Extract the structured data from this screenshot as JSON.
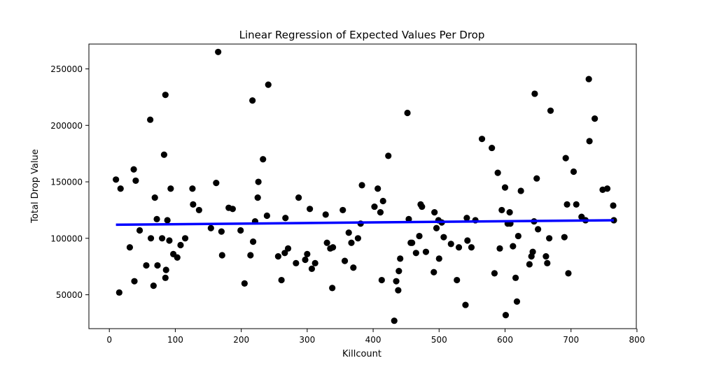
{
  "chart_data": {
    "type": "scatter",
    "title": "Linear Regression of Expected Values Per Drop",
    "xlabel": "Killcount",
    "ylabel": "Total Drop Value",
    "xlim": [
      -31,
      799
    ],
    "ylim": [
      20000,
      272000
    ],
    "xticks": [
      0,
      100,
      200,
      300,
      400,
      500,
      600,
      700,
      800
    ],
    "yticks": [
      50000,
      100000,
      150000,
      200000,
      250000
    ],
    "xtick_labels": [
      "0",
      "100",
      "200",
      "300",
      "400",
      "500",
      "600",
      "700",
      "800"
    ],
    "ytick_labels": [
      "50000",
      "100000",
      "150000",
      "200000",
      "250000"
    ],
    "grid": false,
    "point_color": "#000000",
    "line_color": "#0000ff",
    "regression": {
      "x": [
        10,
        765
      ],
      "y": [
        112000,
        116000
      ]
    },
    "points": [
      [
        10,
        152000
      ],
      [
        15,
        52000
      ],
      [
        17,
        144000
      ],
      [
        31,
        92000
      ],
      [
        37,
        161000
      ],
      [
        38,
        62000
      ],
      [
        40,
        151000
      ],
      [
        46,
        107000
      ],
      [
        56,
        76000
      ],
      [
        62,
        205000
      ],
      [
        63,
        100000
      ],
      [
        67,
        58000
      ],
      [
        69,
        136000
      ],
      [
        72,
        117000
      ],
      [
        73,
        76000
      ],
      [
        80,
        100000
      ],
      [
        83,
        174000
      ],
      [
        85,
        65000
      ],
      [
        85,
        227000
      ],
      [
        86,
        72000
      ],
      [
        88,
        116000
      ],
      [
        91,
        98000
      ],
      [
        93,
        144000
      ],
      [
        97,
        86000
      ],
      [
        103,
        83000
      ],
      [
        108,
        94000
      ],
      [
        115,
        100000
      ],
      [
        126,
        144000
      ],
      [
        127,
        130000
      ],
      [
        136,
        125000
      ],
      [
        154,
        109000
      ],
      [
        162,
        149000
      ],
      [
        165,
        265000
      ],
      [
        170,
        106000
      ],
      [
        171,
        85000
      ],
      [
        181,
        127000
      ],
      [
        187,
        126000
      ],
      [
        199,
        107000
      ],
      [
        205,
        60000
      ],
      [
        214,
        85000
      ],
      [
        217,
        222000
      ],
      [
        218,
        97000
      ],
      [
        221,
        115000
      ],
      [
        225,
        136000
      ],
      [
        226,
        150000
      ],
      [
        233,
        170000
      ],
      [
        239,
        120000
      ],
      [
        241,
        236000
      ],
      [
        256,
        84000
      ],
      [
        261,
        63000
      ],
      [
        266,
        87000
      ],
      [
        267,
        118000
      ],
      [
        271,
        91000
      ],
      [
        283,
        78000
      ],
      [
        287,
        136000
      ],
      [
        297,
        81000
      ],
      [
        300,
        86000
      ],
      [
        304,
        126000
      ],
      [
        307,
        73000
      ],
      [
        312,
        78000
      ],
      [
        328,
        121000
      ],
      [
        330,
        96000
      ],
      [
        335,
        91000
      ],
      [
        338,
        56000
      ],
      [
        339,
        92000
      ],
      [
        354,
        125000
      ],
      [
        357,
        80000
      ],
      [
        363,
        105000
      ],
      [
        367,
        96000
      ],
      [
        370,
        74000
      ],
      [
        377,
        100000
      ],
      [
        381,
        113000
      ],
      [
        383,
        147000
      ],
      [
        402,
        128000
      ],
      [
        407,
        144000
      ],
      [
        411,
        123000
      ],
      [
        413,
        63000
      ],
      [
        415,
        133000
      ],
      [
        423,
        173000
      ],
      [
        432,
        27000
      ],
      [
        435,
        62000
      ],
      [
        438,
        54000
      ],
      [
        439,
        71000
      ],
      [
        441,
        82000
      ],
      [
        452,
        211000
      ],
      [
        454,
        117000
      ],
      [
        457,
        96000
      ],
      [
        459,
        96000
      ],
      [
        465,
        87000
      ],
      [
        470,
        102000
      ],
      [
        472,
        130000
      ],
      [
        474,
        128000
      ],
      [
        480,
        88000
      ],
      [
        492,
        70000
      ],
      [
        493,
        123000
      ],
      [
        496,
        109000
      ],
      [
        499,
        116000
      ],
      [
        500,
        82000
      ],
      [
        504,
        114000
      ],
      [
        507,
        101000
      ],
      [
        518,
        95000
      ],
      [
        527,
        63000
      ],
      [
        530,
        92000
      ],
      [
        540,
        41000
      ],
      [
        542,
        118000
      ],
      [
        543,
        98000
      ],
      [
        549,
        92000
      ],
      [
        555,
        116000
      ],
      [
        565,
        188000
      ],
      [
        580,
        180000
      ],
      [
        584,
        69000
      ],
      [
        589,
        158000
      ],
      [
        592,
        91000
      ],
      [
        595,
        125000
      ],
      [
        600,
        145000
      ],
      [
        601,
        32000
      ],
      [
        604,
        113000
      ],
      [
        607,
        123000
      ],
      [
        608,
        113000
      ],
      [
        612,
        93000
      ],
      [
        616,
        65000
      ],
      [
        618,
        44000
      ],
      [
        620,
        102000
      ],
      [
        624,
        142000
      ],
      [
        637,
        77000
      ],
      [
        640,
        84000
      ],
      [
        642,
        88000
      ],
      [
        644,
        115000
      ],
      [
        645,
        228000
      ],
      [
        648,
        153000
      ],
      [
        650,
        108000
      ],
      [
        662,
        84000
      ],
      [
        664,
        78000
      ],
      [
        667,
        100000
      ],
      [
        669,
        213000
      ],
      [
        690,
        101000
      ],
      [
        692,
        171000
      ],
      [
        694,
        130000
      ],
      [
        696,
        69000
      ],
      [
        704,
        159000
      ],
      [
        708,
        130000
      ],
      [
        716,
        119000
      ],
      [
        722,
        116000
      ],
      [
        727,
        241000
      ],
      [
        728,
        186000
      ],
      [
        736,
        206000
      ],
      [
        748,
        143000
      ],
      [
        755,
        144000
      ],
      [
        764,
        129000
      ],
      [
        765,
        116000
      ]
    ]
  }
}
